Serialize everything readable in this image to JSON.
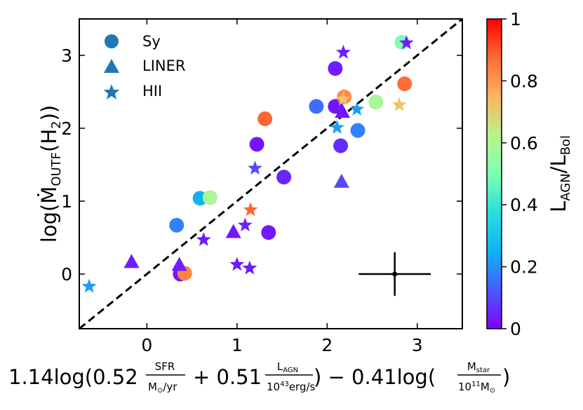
{
  "chart_data": {
    "type": "scatter",
    "xlabel": "1.14log(0.52 SFR/(M⊙/yr) + 0.51 L_AGN/(10^43 erg/s)) − 0.41log(M_star/(10^11 M⊙))",
    "xlabel_parts": {
      "p1": "1.14log(0.52",
      "sfr_num": "SFR",
      "sfr_den_m": "M",
      "sfr_den_rest": "/yr",
      "p2": "+ 0.51",
      "lagn_num": "L",
      "lagn_num_sub": "AGN",
      "lagn_den": "10",
      "lagn_den_sup": "43",
      "lagn_den_rest": "erg/s",
      "p3": ") − 0.41log(",
      "mstar_num": "M",
      "mstar_num_sub": "star",
      "mstar_den": "10",
      "mstar_den_sup": "11",
      "mstar_den_m": "M",
      "p4": ")"
    },
    "ylabel": "log(Ṁ_OUTF(H2))",
    "ylabel_parts": {
      "p1": "log(",
      "m": "Ṁ",
      "sub": "OUTF",
      "p2": "(H",
      "sub2": "2",
      "p3": "))"
    },
    "xlim": [
      -0.75,
      3.5
    ],
    "ylim": [
      -0.75,
      3.5
    ],
    "xticks": [
      0,
      1,
      2,
      3
    ],
    "yticks": [
      0,
      1,
      2,
      3
    ],
    "one_to_one_line": true,
    "colorbar": {
      "label": "L_AGN/L_Bol",
      "label_parts": {
        "l1": "L",
        "s1": "AGN",
        "slash": "/L",
        "s2": "Bol"
      },
      "range": [
        0,
        1
      ],
      "ticks": [
        0,
        0.2,
        0.4,
        0.6,
        0.8,
        1
      ],
      "tick_labels": [
        "0",
        "0.2",
        "0.4",
        "0.6",
        "0.8",
        "1"
      ]
    },
    "legend": {
      "position": "top-left",
      "entries": [
        {
          "label": "Sy",
          "marker": "circle"
        },
        {
          "label": "LINER",
          "marker": "triangle"
        },
        {
          "label": "HII",
          "marker": "star"
        }
      ],
      "color": "#1f77b4"
    },
    "error_bar": {
      "x": 2.75,
      "y": 0.0,
      "xerr": 0.4,
      "yerr": 0.3
    },
    "series": [
      {
        "name": "Sy",
        "marker": "circle",
        "points": [
          {
            "x": 0.33,
            "y": 0.67,
            "c": 0.18
          },
          {
            "x": 0.37,
            "y": 0.0,
            "c": 0.03
          },
          {
            "x": 0.42,
            "y": 0.01,
            "c": 0.83
          },
          {
            "x": 0.59,
            "y": 1.04,
            "c": 0.25
          },
          {
            "x": 0.7,
            "y": 1.05,
            "c": 0.6
          },
          {
            "x": 1.22,
            "y": 1.78,
            "c": 0.03
          },
          {
            "x": 1.31,
            "y": 2.13,
            "c": 0.88
          },
          {
            "x": 1.35,
            "y": 0.57,
            "c": 0.03
          },
          {
            "x": 1.52,
            "y": 1.33,
            "c": 0.05
          },
          {
            "x": 1.88,
            "y": 2.3,
            "c": 0.15
          },
          {
            "x": 2.09,
            "y": 2.3,
            "c": 0.03
          },
          {
            "x": 2.09,
            "y": 2.82,
            "c": 0.04
          },
          {
            "x": 2.15,
            "y": 1.76,
            "c": 0.06
          },
          {
            "x": 2.19,
            "y": 2.43,
            "c": 0.82
          },
          {
            "x": 2.34,
            "y": 1.97,
            "c": 0.18
          },
          {
            "x": 2.54,
            "y": 2.36,
            "c": 0.6
          },
          {
            "x": 2.83,
            "y": 3.18,
            "c": 0.5
          },
          {
            "x": 2.86,
            "y": 2.61,
            "c": 0.87
          }
        ]
      },
      {
        "name": "LINER",
        "marker": "triangle",
        "points": [
          {
            "x": -0.17,
            "y": 0.17,
            "c": 0.04
          },
          {
            "x": 0.36,
            "y": 0.13,
            "c": 0.04
          },
          {
            "x": 0.96,
            "y": 0.58,
            "c": 0.03
          },
          {
            "x": 2.16,
            "y": 1.27,
            "c": 0.1
          },
          {
            "x": 2.17,
            "y": 2.23,
            "c": 0.03
          }
        ]
      },
      {
        "name": "HII",
        "marker": "star",
        "points": [
          {
            "x": -0.64,
            "y": -0.17,
            "c": 0.22
          },
          {
            "x": 0.63,
            "y": 0.47,
            "c": 0.04
          },
          {
            "x": 1.0,
            "y": 0.13,
            "c": 0.03
          },
          {
            "x": 1.09,
            "y": 0.67,
            "c": 0.05
          },
          {
            "x": 1.14,
            "y": 0.08,
            "c": 0.04
          },
          {
            "x": 1.15,
            "y": 0.88,
            "c": 0.88
          },
          {
            "x": 1.2,
            "y": 1.45,
            "c": 0.1
          },
          {
            "x": 2.11,
            "y": 2.01,
            "c": 0.22
          },
          {
            "x": 2.18,
            "y": 3.04,
            "c": 0.04
          },
          {
            "x": 2.18,
            "y": 2.4,
            "c": 0.72
          },
          {
            "x": 2.33,
            "y": 2.26,
            "c": 0.22
          },
          {
            "x": 2.8,
            "y": 2.32,
            "c": 0.72
          },
          {
            "x": 2.88,
            "y": 3.17,
            "c": 0.04
          }
        ]
      }
    ]
  }
}
